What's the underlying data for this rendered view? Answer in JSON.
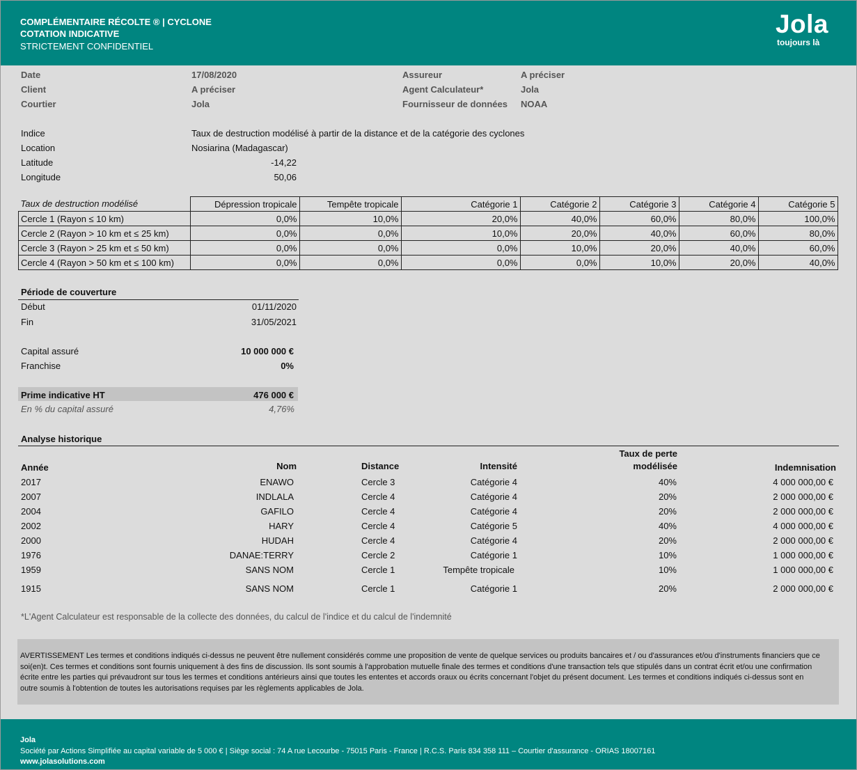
{
  "header": {
    "line1": "COMPLÉMENTAIRE RÉCOLTE ® | CYCLONE",
    "line2": "COTATION INDICATIVE",
    "line3": "STRICTEMENT CONFIDENTIEL",
    "logo": "Jola",
    "tagline": "toujours là"
  },
  "meta": {
    "date_label": "Date",
    "date_value": "17/08/2020",
    "client_label": "Client",
    "client_value": "A préciser",
    "courtier_label": "Courtier",
    "courtier_value": "Jola",
    "assureur_label": "Assureur",
    "assureur_value": "A préciser",
    "agent_label": "Agent Calculateur*",
    "agent_value": "Jola",
    "fournisseur_label": "Fournisseur de données",
    "fournisseur_value": "NOAA"
  },
  "index": {
    "indice_label": "Indice",
    "indice_value": "Taux de destruction modélisé à partir de la distance et de la catégorie des cyclones",
    "location_label": "Location",
    "location_value": "Nosiarina (Madagascar)",
    "latitude_label": "Latitude",
    "latitude_value": "-14,22",
    "longitude_label": "Longitude",
    "longitude_value": "50,06"
  },
  "destruction_table": {
    "title": "Taux de destruction modélisé",
    "columns": [
      "Dépression tropicale",
      "Tempête tropicale",
      "Catégorie 1",
      "Catégorie 2",
      "Catégorie 3",
      "Catégorie 4",
      "Catégorie 5"
    ],
    "rows": [
      {
        "label": "Cercle 1 (Rayon ≤ 10 km)",
        "values": [
          "0,0%",
          "10,0%",
          "20,0%",
          "40,0%",
          "60,0%",
          "80,0%",
          "100,0%"
        ]
      },
      {
        "label": "Cercle 2 (Rayon > 10 km et ≤ 25 km)",
        "values": [
          "0,0%",
          "0,0%",
          "10,0%",
          "20,0%",
          "40,0%",
          "60,0%",
          "80,0%"
        ]
      },
      {
        "label": "Cercle 3 (Rayon > 25 km et ≤ 50 km)",
        "values": [
          "0,0%",
          "0,0%",
          "0,0%",
          "10,0%",
          "20,0%",
          "40,0%",
          "60,0%"
        ]
      },
      {
        "label": "Cercle 4 (Rayon > 50 km et ≤ 100 km)",
        "values": [
          "0,0%",
          "0,0%",
          "0,0%",
          "0,0%",
          "10,0%",
          "20,0%",
          "40,0%"
        ]
      }
    ]
  },
  "coverage": {
    "title": "Période de couverture",
    "debut_label": "Début",
    "debut_value": "01/11/2020",
    "fin_label": "Fin",
    "fin_value": "31/05/2021",
    "capital_label": "Capital assuré",
    "capital_value": "10 000 000 €",
    "franchise_label": "Franchise",
    "franchise_value": "0%",
    "prime_label": "Prime indicative HT",
    "prime_value": "476 000 €",
    "pct_label": "En % du capital assuré",
    "pct_value": "4,76%"
  },
  "history": {
    "title": "Analyse historique",
    "headers": {
      "annee": "Année",
      "nom": "Nom",
      "distance": "Distance",
      "intensite": "Intensité",
      "taux_line1": "Taux de perte",
      "taux_line2": "modélisée",
      "indemnisation": "Indemnisation"
    },
    "rows": [
      {
        "annee": "2017",
        "nom": "ENAWO",
        "distance": "Cercle 3",
        "intensite": "Catégorie 4",
        "taux": "40%",
        "indemnisation": "4 000 000,00 €"
      },
      {
        "annee": "2007",
        "nom": "INDLALA",
        "distance": "Cercle 4",
        "intensite": "Catégorie 4",
        "taux": "20%",
        "indemnisation": "2 000 000,00 €"
      },
      {
        "annee": "2004",
        "nom": "GAFILO",
        "distance": "Cercle 4",
        "intensite": "Catégorie 4",
        "taux": "20%",
        "indemnisation": "2 000 000,00 €"
      },
      {
        "annee": "2002",
        "nom": "HARY",
        "distance": "Cercle 4",
        "intensite": "Catégorie 5",
        "taux": "40%",
        "indemnisation": "4 000 000,00 €"
      },
      {
        "annee": "2000",
        "nom": "HUDAH",
        "distance": "Cercle 4",
        "intensite": "Catégorie 4",
        "taux": "20%",
        "indemnisation": "2 000 000,00 €"
      },
      {
        "annee": "1976",
        "nom": "DANAE:TERRY",
        "distance": "Cercle 2",
        "intensite": "Catégorie 1",
        "taux": "10%",
        "indemnisation": "1 000 000,00 €"
      },
      {
        "annee": "1959",
        "nom": "SANS NOM",
        "distance": "Cercle 1",
        "intensite": "Tempête tropicale",
        "taux": "10%",
        "indemnisation": "1 000 000,00 €"
      },
      {
        "annee": "1915",
        "nom": "SANS NOM",
        "distance": "Cercle 1",
        "intensite": "Catégorie 1",
        "taux": "20%",
        "indemnisation": "2 000 000,00 €"
      }
    ]
  },
  "footnote": "*L'Agent Calculateur est responsable de la collecte des données, du calcul de l'indice et du calcul de l'indemnité",
  "notice": "AVERTISSEMENT Les termes et conditions indiqués ci-dessus ne peuvent être nullement considérés comme une proposition de vente de quelque services ou produits bancaires et / ou d'assurances et/ou d'instruments financiers que ce soi(en)t. Ces termes et conditions sont fournis uniquement à des fins de discussion. Ils sont soumis à l'approbation mutuelle finale des termes et conditions d'une transaction tels que stipulés dans un contrat écrit et/ou une confirmation écrite entre les parties qui prévaudront sur tous les termes et conditions antérieurs ainsi que toutes les ententes et accords oraux ou écrits concernant l'objet du présent document. Les termes et conditions indiqués ci-dessus sont en outre soumis à l'obtention de toutes les autorisations requises par les règlements applicables de Jola.",
  "footer": {
    "company": "Jola",
    "details": "Société par Actions Simplifiée au capital variable de 5 000 € | Siège social : 74 A rue Lecourbe - 75015 Paris - France | R.C.S. Paris 834 358 111 – Courtier d'assurance - ORIAS 18007161",
    "website": "www.jolasolutions.com"
  },
  "colors": {
    "brand": "#008580",
    "background": "#dcdcdc",
    "shade": "#c3c3c3"
  }
}
